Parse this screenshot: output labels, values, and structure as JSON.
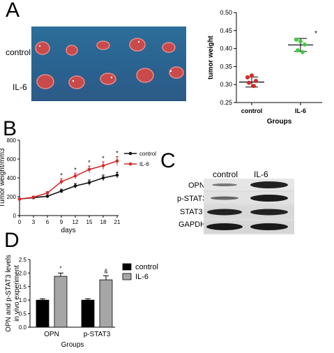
{
  "panels": {
    "a": {
      "letter": "A",
      "row_labels": [
        "control",
        "IL-6"
      ]
    },
    "b": {
      "letter": "B"
    },
    "c": {
      "letter": "C",
      "columns": [
        "control",
        "IL-6"
      ],
      "rows": [
        "OPN",
        "p-STAT3",
        "STAT3",
        "GAPDH"
      ]
    },
    "d": {
      "letter": "D"
    }
  },
  "chart_data": [
    {
      "id": "A",
      "type": "scatter",
      "xlabel": "Groups",
      "ylabel": "tumor weight",
      "categories": [
        "control",
        "IL-6"
      ],
      "ylim": [
        0.25,
        0.5
      ],
      "yticks": [
        "0.25",
        "0.30",
        "0.35",
        "0.40",
        "0.45",
        "0.50"
      ],
      "points": [
        [
          0.32,
          0.31,
          0.305,
          0.296,
          0.325
        ],
        [
          0.425,
          0.411,
          0.395,
          0.39,
          0.42
        ]
      ],
      "mean": [
        0.307,
        0.41
      ],
      "sd": [
        0.014,
        0.018
      ],
      "colors": [
        "#d42a2a",
        "#44cc44"
      ],
      "annotations": [
        "",
        "*"
      ]
    },
    {
      "id": "B",
      "type": "line",
      "xlabel": "days",
      "ylabel": "Tumor weight/mm3",
      "xlim": [
        0,
        21
      ],
      "ylim": [
        0,
        800
      ],
      "xticks": [
        "0",
        "3",
        "6",
        "9",
        "12",
        "15",
        "18",
        "21"
      ],
      "yticks": [
        "0",
        "200",
        "400",
        "600",
        "800"
      ],
      "x": [
        0,
        3,
        6,
        9,
        12,
        15,
        18,
        21
      ],
      "series": [
        {
          "name": "control",
          "color": "#111111",
          "values": [
            175,
            190,
            205,
            260,
            315,
            350,
            400,
            430
          ],
          "err": [
            8,
            8,
            10,
            20,
            25,
            28,
            30,
            30
          ]
        },
        {
          "name": "IL-6",
          "color": "#d42a2a",
          "values": [
            175,
            195,
            240,
            360,
            420,
            490,
            530,
            580
          ],
          "err": [
            8,
            10,
            15,
            30,
            30,
            35,
            40,
            45
          ]
        }
      ],
      "annotations": [
        "",
        "",
        "",
        "*",
        "*",
        "*",
        "*",
        "*"
      ]
    },
    {
      "id": "D",
      "type": "bar",
      "xlabel": "Groups",
      "ylabel": "OPN and p-STAT3 levels in vivo experiment",
      "ylabel_lines": [
        "OPN and p-STAT3 levels",
        "in vivo experiment"
      ],
      "categories": [
        "OPN",
        "p-STAT3"
      ],
      "ylim": [
        0,
        2.5
      ],
      "yticks": [
        "0.0",
        "0.5",
        "1.0",
        "1.5",
        "2.0",
        "2.5"
      ],
      "series": [
        {
          "name": "control",
          "color": "#000000",
          "values": [
            1.0,
            1.0
          ],
          "err": [
            0.05,
            0.05
          ]
        },
        {
          "name": "IL-6",
          "color": "#a6a6a6",
          "values": [
            1.88,
            1.75
          ],
          "err": [
            0.12,
            0.15
          ]
        }
      ],
      "annotations": [
        "*",
        "&"
      ],
      "legend": "top-right"
    }
  ]
}
